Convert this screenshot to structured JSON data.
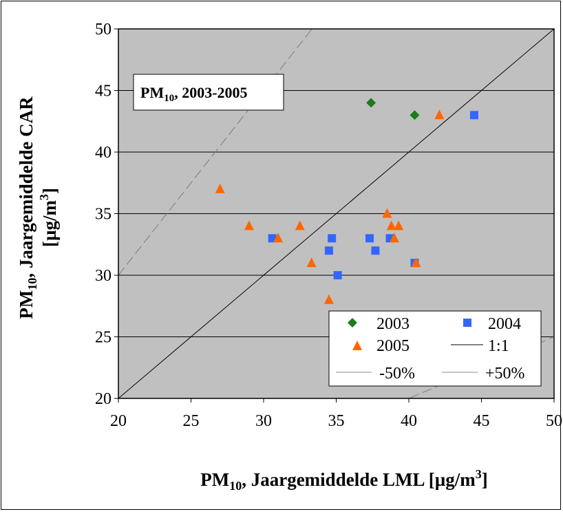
{
  "chart_data": {
    "type": "scatter",
    "title": "PM10, 2003-2005",
    "title_parts": {
      "main": "PM",
      "sub": "10",
      "rest": ", 2003-2005"
    },
    "xlabel": "PM10, Jaargemiddelde LML [µg/m3]",
    "xlabel_parts": {
      "main": "PM",
      "sub": "10",
      "rest": ", Jaargemiddelde LML [µg/m",
      "sup": "3",
      "end": "]"
    },
    "ylabel": "PM10, Jaargemiddelde CAR [µg/m3]",
    "ylabel_parts": {
      "line1_main": "PM",
      "line1_sub": "10",
      "line1_rest": ", Jaargemiddelde CAR",
      "line2_start": "[µg/m",
      "line2_sup": "3",
      "line2_end": "]"
    },
    "xlim": [
      20,
      50
    ],
    "ylim": [
      20,
      50
    ],
    "xticks": [
      20,
      25,
      30,
      35,
      40,
      45,
      50
    ],
    "yticks": [
      20,
      25,
      30,
      35,
      40,
      45,
      50
    ],
    "grid": "horizontal",
    "background_color": "#c0c0c0",
    "legend_position": "bottom-right",
    "series": [
      {
        "name": "2003",
        "marker": "diamond",
        "color": "#1a7d1a",
        "points": [
          [
            37.4,
            44
          ],
          [
            40.4,
            43
          ]
        ]
      },
      {
        "name": "2004",
        "marker": "square",
        "color": "#3366ff",
        "points": [
          [
            30.6,
            33
          ],
          [
            34.5,
            32
          ],
          [
            34.7,
            33
          ],
          [
            35.1,
            30
          ],
          [
            37.3,
            33
          ],
          [
            37.7,
            32
          ],
          [
            38.7,
            33
          ],
          [
            40.4,
            31
          ],
          [
            44.5,
            43
          ]
        ]
      },
      {
        "name": "2005",
        "marker": "triangle",
        "color": "#ff6600",
        "points": [
          [
            27,
            37
          ],
          [
            29,
            34
          ],
          [
            31,
            33
          ],
          [
            32.5,
            34
          ],
          [
            33.3,
            31
          ],
          [
            34.5,
            28
          ],
          [
            38.5,
            35
          ],
          [
            38.8,
            34
          ],
          [
            39,
            33
          ],
          [
            39.3,
            34
          ],
          [
            40.5,
            31
          ],
          [
            42.1,
            43
          ]
        ]
      }
    ],
    "reference_lines": [
      {
        "name": "1:1",
        "factor": 1.0,
        "color": "#000000",
        "dashed": false
      },
      {
        "name": "-50%",
        "factor": 0.5,
        "color": "#7a7a7a",
        "dashed": true
      },
      {
        "name": "+50%",
        "factor": 1.5,
        "color": "#7a7a7a",
        "dashed": true
      }
    ],
    "legend": [
      {
        "label": "2003",
        "symbol": "diamond",
        "color": "#1a7d1a"
      },
      {
        "label": "2004",
        "symbol": "square",
        "color": "#3366ff"
      },
      {
        "label": "2005",
        "symbol": "triangle",
        "color": "#ff6600"
      },
      {
        "label": "1:1",
        "symbol": "line",
        "color": "#000000"
      },
      {
        "label": "-50%",
        "symbol": "line-dashed",
        "color": "#8a8a8a"
      },
      {
        "label": "+50%",
        "symbol": "line-dashed",
        "color": "#8a8a8a"
      }
    ]
  }
}
